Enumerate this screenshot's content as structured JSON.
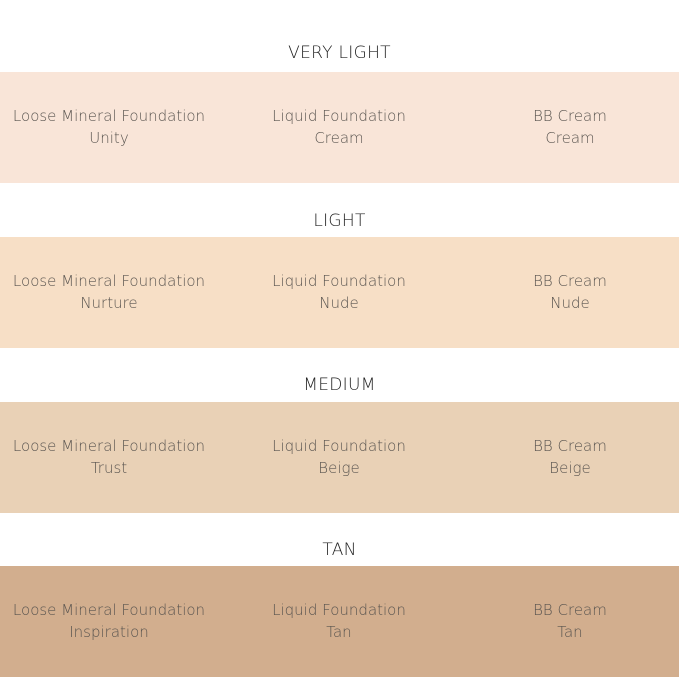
{
  "sections": [
    {
      "title": "VERY LIGHT",
      "color": "#f9e5d8",
      "items": [
        {
          "product": "Loose Mineral Foundation",
          "shade": "Unity"
        },
        {
          "product": "Liquid Foundation",
          "shade": "Cream"
        },
        {
          "product": "BB Cream",
          "shade": "Cream"
        }
      ]
    },
    {
      "title": "LIGHT",
      "color": "#f7dfc6",
      "items": [
        {
          "product": "Loose Mineral Foundation",
          "shade": "Nurture"
        },
        {
          "product": "Liquid Foundation",
          "shade": "Nude"
        },
        {
          "product": "BB Cream",
          "shade": "Nude"
        }
      ]
    },
    {
      "title": "MEDIUM",
      "color": "#e9d1b6",
      "items": [
        {
          "product": "Loose Mineral Foundation",
          "shade": "Trust"
        },
        {
          "product": "Liquid Foundation",
          "shade": "Beige"
        },
        {
          "product": "BB Cream",
          "shade": "Beige"
        }
      ]
    },
    {
      "title": "TAN",
      "color": "#d2ae8e",
      "items": [
        {
          "product": "Loose Mineral Foundation",
          "shade": "Inspiration"
        },
        {
          "product": "Liquid Foundation",
          "shade": "Tan"
        },
        {
          "product": "BB Cream",
          "shade": "Tan"
        }
      ]
    }
  ]
}
